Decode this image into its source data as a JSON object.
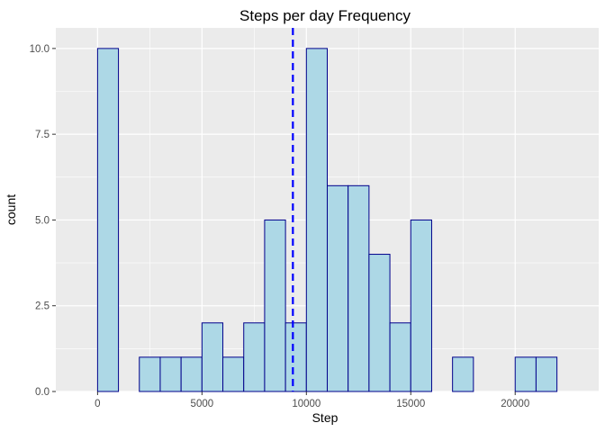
{
  "chart_data": {
    "type": "bar",
    "title": "Steps per day Frequency",
    "xlabel": "Step",
    "ylabel": "count",
    "xlim": [
      -2000,
      24000
    ],
    "ylim": [
      0,
      10.6
    ],
    "x_ticks": [
      0,
      5000,
      10000,
      15000,
      20000
    ],
    "x_tick_labels": [
      "0",
      "5000",
      "10000",
      "15000",
      "20000"
    ],
    "y_ticks": [
      0,
      2.5,
      5,
      7.5,
      10
    ],
    "y_tick_labels": [
      "0.0",
      "2.5",
      "5.0",
      "7.5",
      "10.0"
    ],
    "bin_width": 1000,
    "bin_centers": [
      -500,
      500,
      1500,
      2500,
      3500,
      4500,
      5500,
      6500,
      7500,
      8500,
      9500,
      10500,
      11500,
      12500,
      13500,
      14500,
      15500,
      16500,
      17500,
      18500,
      19500,
      20500,
      21500,
      22500
    ],
    "values": [
      0,
      10,
      0,
      1,
      1,
      1,
      2,
      1,
      2,
      5,
      2,
      10,
      6,
      6,
      4,
      2,
      5,
      0,
      1,
      0,
      0,
      1,
      1,
      0
    ],
    "vline": 9354,
    "grid": true,
    "colors": {
      "panel": "#ebebeb",
      "grid": "#ffffff",
      "bar_fill": "#add8e6",
      "bar_outline": "#00008b",
      "vline": "#0000ff"
    }
  }
}
